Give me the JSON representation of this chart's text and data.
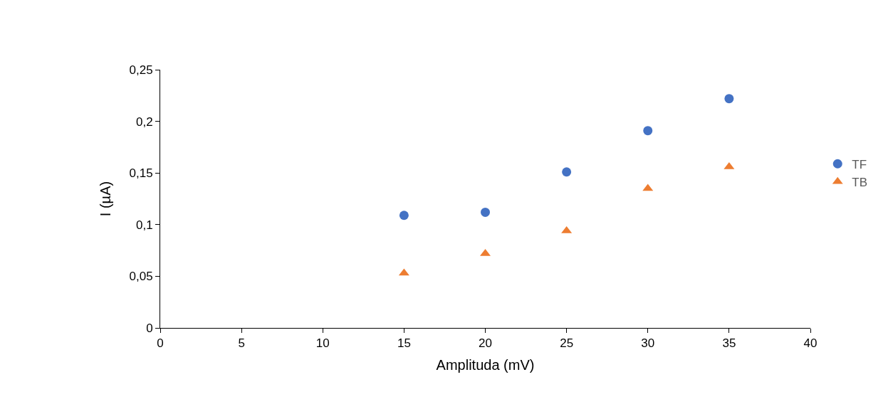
{
  "chart_data": {
    "type": "scatter",
    "xlabel": "Amplituda (mV)",
    "ylabel": "I (µA)",
    "x": [
      15,
      20,
      25,
      30,
      35
    ],
    "series": [
      {
        "name": "TF",
        "color": "#4472c4",
        "marker": "circle",
        "values": [
          0.109,
          0.112,
          0.151,
          0.191,
          0.222
        ]
      },
      {
        "name": "TB",
        "color": "#ed7d31",
        "marker": "triangle",
        "values": [
          0.053,
          0.072,
          0.094,
          0.135,
          0.156
        ]
      }
    ],
    "xlim": [
      0,
      40
    ],
    "xticks": [
      0,
      5,
      10,
      15,
      20,
      25,
      30,
      35,
      40
    ],
    "ylim": [
      0,
      0.25
    ],
    "yticks": [
      0,
      {
        "value": 0.05,
        "label": "0,05"
      },
      {
        "value": 0.1,
        "label": "0,1"
      },
      {
        "value": 0.15,
        "label": "0,15"
      },
      {
        "value": 0.2,
        "label": "0,2"
      },
      {
        "value": 0.25,
        "label": "0,25"
      }
    ],
    "grid": false,
    "legend": "right"
  }
}
